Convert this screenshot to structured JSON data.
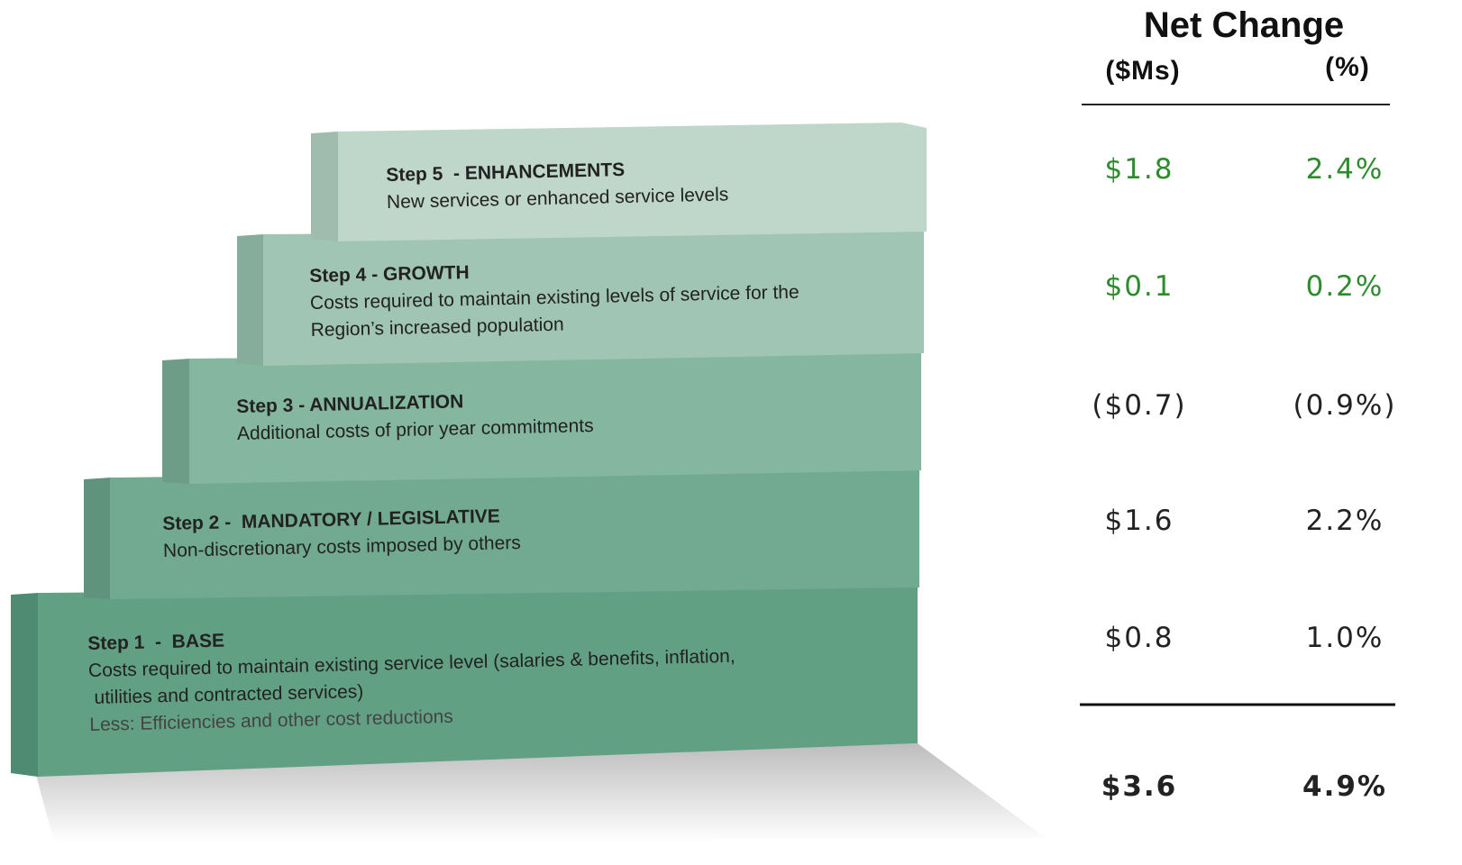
{
  "steps": [
    {
      "title": "Step 5  - ENHANCEMENTS",
      "lines": [
        "New services or enhanced service levels"
      ]
    },
    {
      "title": "Step 4 - GROWTH",
      "lines": [
        "Costs required to maintain existing levels of service for the",
        "Region’s increased population"
      ]
    },
    {
      "title": "Step 3 - ANNUALIZATION",
      "lines": [
        "Additional costs of prior year commitments"
      ]
    },
    {
      "title": "Step 2 -  MANDATORY / LEGISLATIVE",
      "lines": [
        "Non-discretionary costs imposed by others"
      ]
    },
    {
      "title": "Step 1  -  BASE",
      "lines": [
        "Costs required to maintain existing service level (salaries & benefits, inflation,",
        " utilities and contracted services)"
      ],
      "note": "Less: Efficiencies and other cost reductions"
    }
  ],
  "table": {
    "title": "Net Change",
    "columns": [
      "($Ms)",
      "(%)"
    ],
    "rows": [
      [
        "$1.8",
        "2.4%"
      ],
      [
        "$0.1",
        "0.2%"
      ],
      [
        "($0.7)",
        "(0.9%)"
      ],
      [
        "$1.6",
        "2.2%"
      ],
      [
        "$0.8",
        "1.0%"
      ]
    ],
    "total": [
      "$3.6",
      "4.9%"
    ]
  }
}
